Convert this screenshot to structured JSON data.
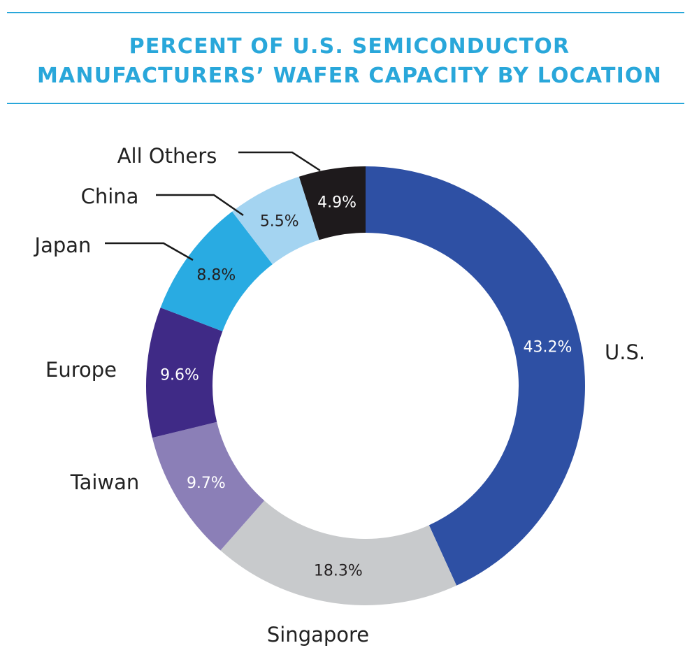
{
  "chart_data": {
    "type": "pie",
    "title_lines": [
      "PERCENT OF U.S. SEMICONDUCTOR",
      "MANUFACTURERS’ WAFER CAPACITY BY LOCATION"
    ],
    "categories": [
      "U.S.",
      "Singapore",
      "Taiwan",
      "Europe",
      "Japan",
      "China",
      "All Others"
    ],
    "values": [
      43.2,
      18.3,
      9.7,
      9.6,
      8.8,
      5.5,
      4.9
    ],
    "value_labels": [
      "43.2%",
      "18.3%",
      "9.7%",
      "9.6%",
      "8.8%",
      "5.5%",
      "4.9%"
    ],
    "colors": [
      "#2e50a4",
      "#c8cacc",
      "#8b7fb7",
      "#3f2a86",
      "#29abe2",
      "#a4d4f1",
      "#1e1a1c"
    ],
    "value_label_colors": [
      "#ffffff",
      "#231f20",
      "#ffffff",
      "#ffffff",
      "#231f20",
      "#231f20",
      "#ffffff"
    ],
    "donut": true,
    "start_angle": "12 o'clock",
    "direction": "clockwise",
    "accent_color": "#29a7da"
  }
}
